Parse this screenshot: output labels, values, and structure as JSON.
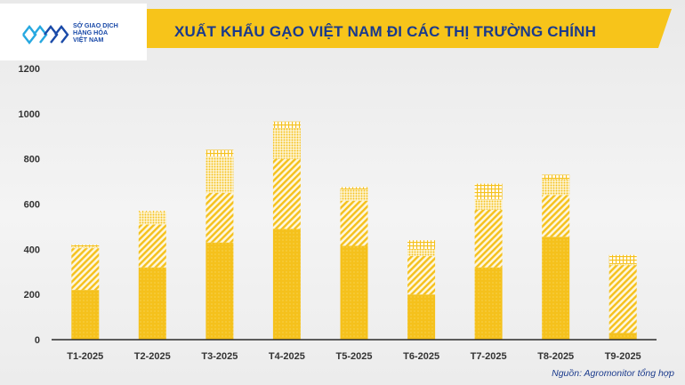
{
  "header": {
    "logo_text": "SỞ GIAO DỊCH\nHÀNG HÓA\nVIỆT NAM",
    "title": "XUẤT KHẨU GẠO VIỆT NAM ĐI CÁC THỊ TRƯỜNG CHÍNH",
    "brand_blue": "#1a3a8c",
    "accent_yellow": "#f7c41a"
  },
  "source": "Nguồn: Agromonitor tổng hợp",
  "chart_data": {
    "type": "bar",
    "stacked": true,
    "categories": [
      "T1-2025",
      "T2-2025",
      "T3-2025",
      "T4-2025",
      "T5-2025",
      "T6-2025",
      "T7-2025",
      "T8-2025",
      "T9-2025"
    ],
    "series": [
      {
        "pattern": "dots",
        "color": "#f5c11c",
        "values": [
          220,
          320,
          430,
          490,
          415,
          200,
          320,
          455,
          30
        ]
      },
      {
        "pattern": "diagonal",
        "color": "#f5c11c",
        "values": [
          185,
          190,
          220,
          310,
          200,
          170,
          255,
          185,
          300
        ]
      },
      {
        "pattern": "dense-dots",
        "color": "#f5c11c",
        "values": [
          5,
          55,
          160,
          135,
          50,
          30,
          45,
          70,
          5
        ]
      },
      {
        "pattern": "grid",
        "color": "#f5c11c",
        "values": [
          10,
          5,
          30,
          30,
          10,
          40,
          70,
          20,
          40
        ]
      }
    ],
    "yticks": [
      0,
      200,
      400,
      600,
      800,
      1000,
      1200
    ],
    "ylim": [
      0,
      1200
    ],
    "title": "",
    "xlabel": "",
    "ylabel": "",
    "legend": "none"
  }
}
